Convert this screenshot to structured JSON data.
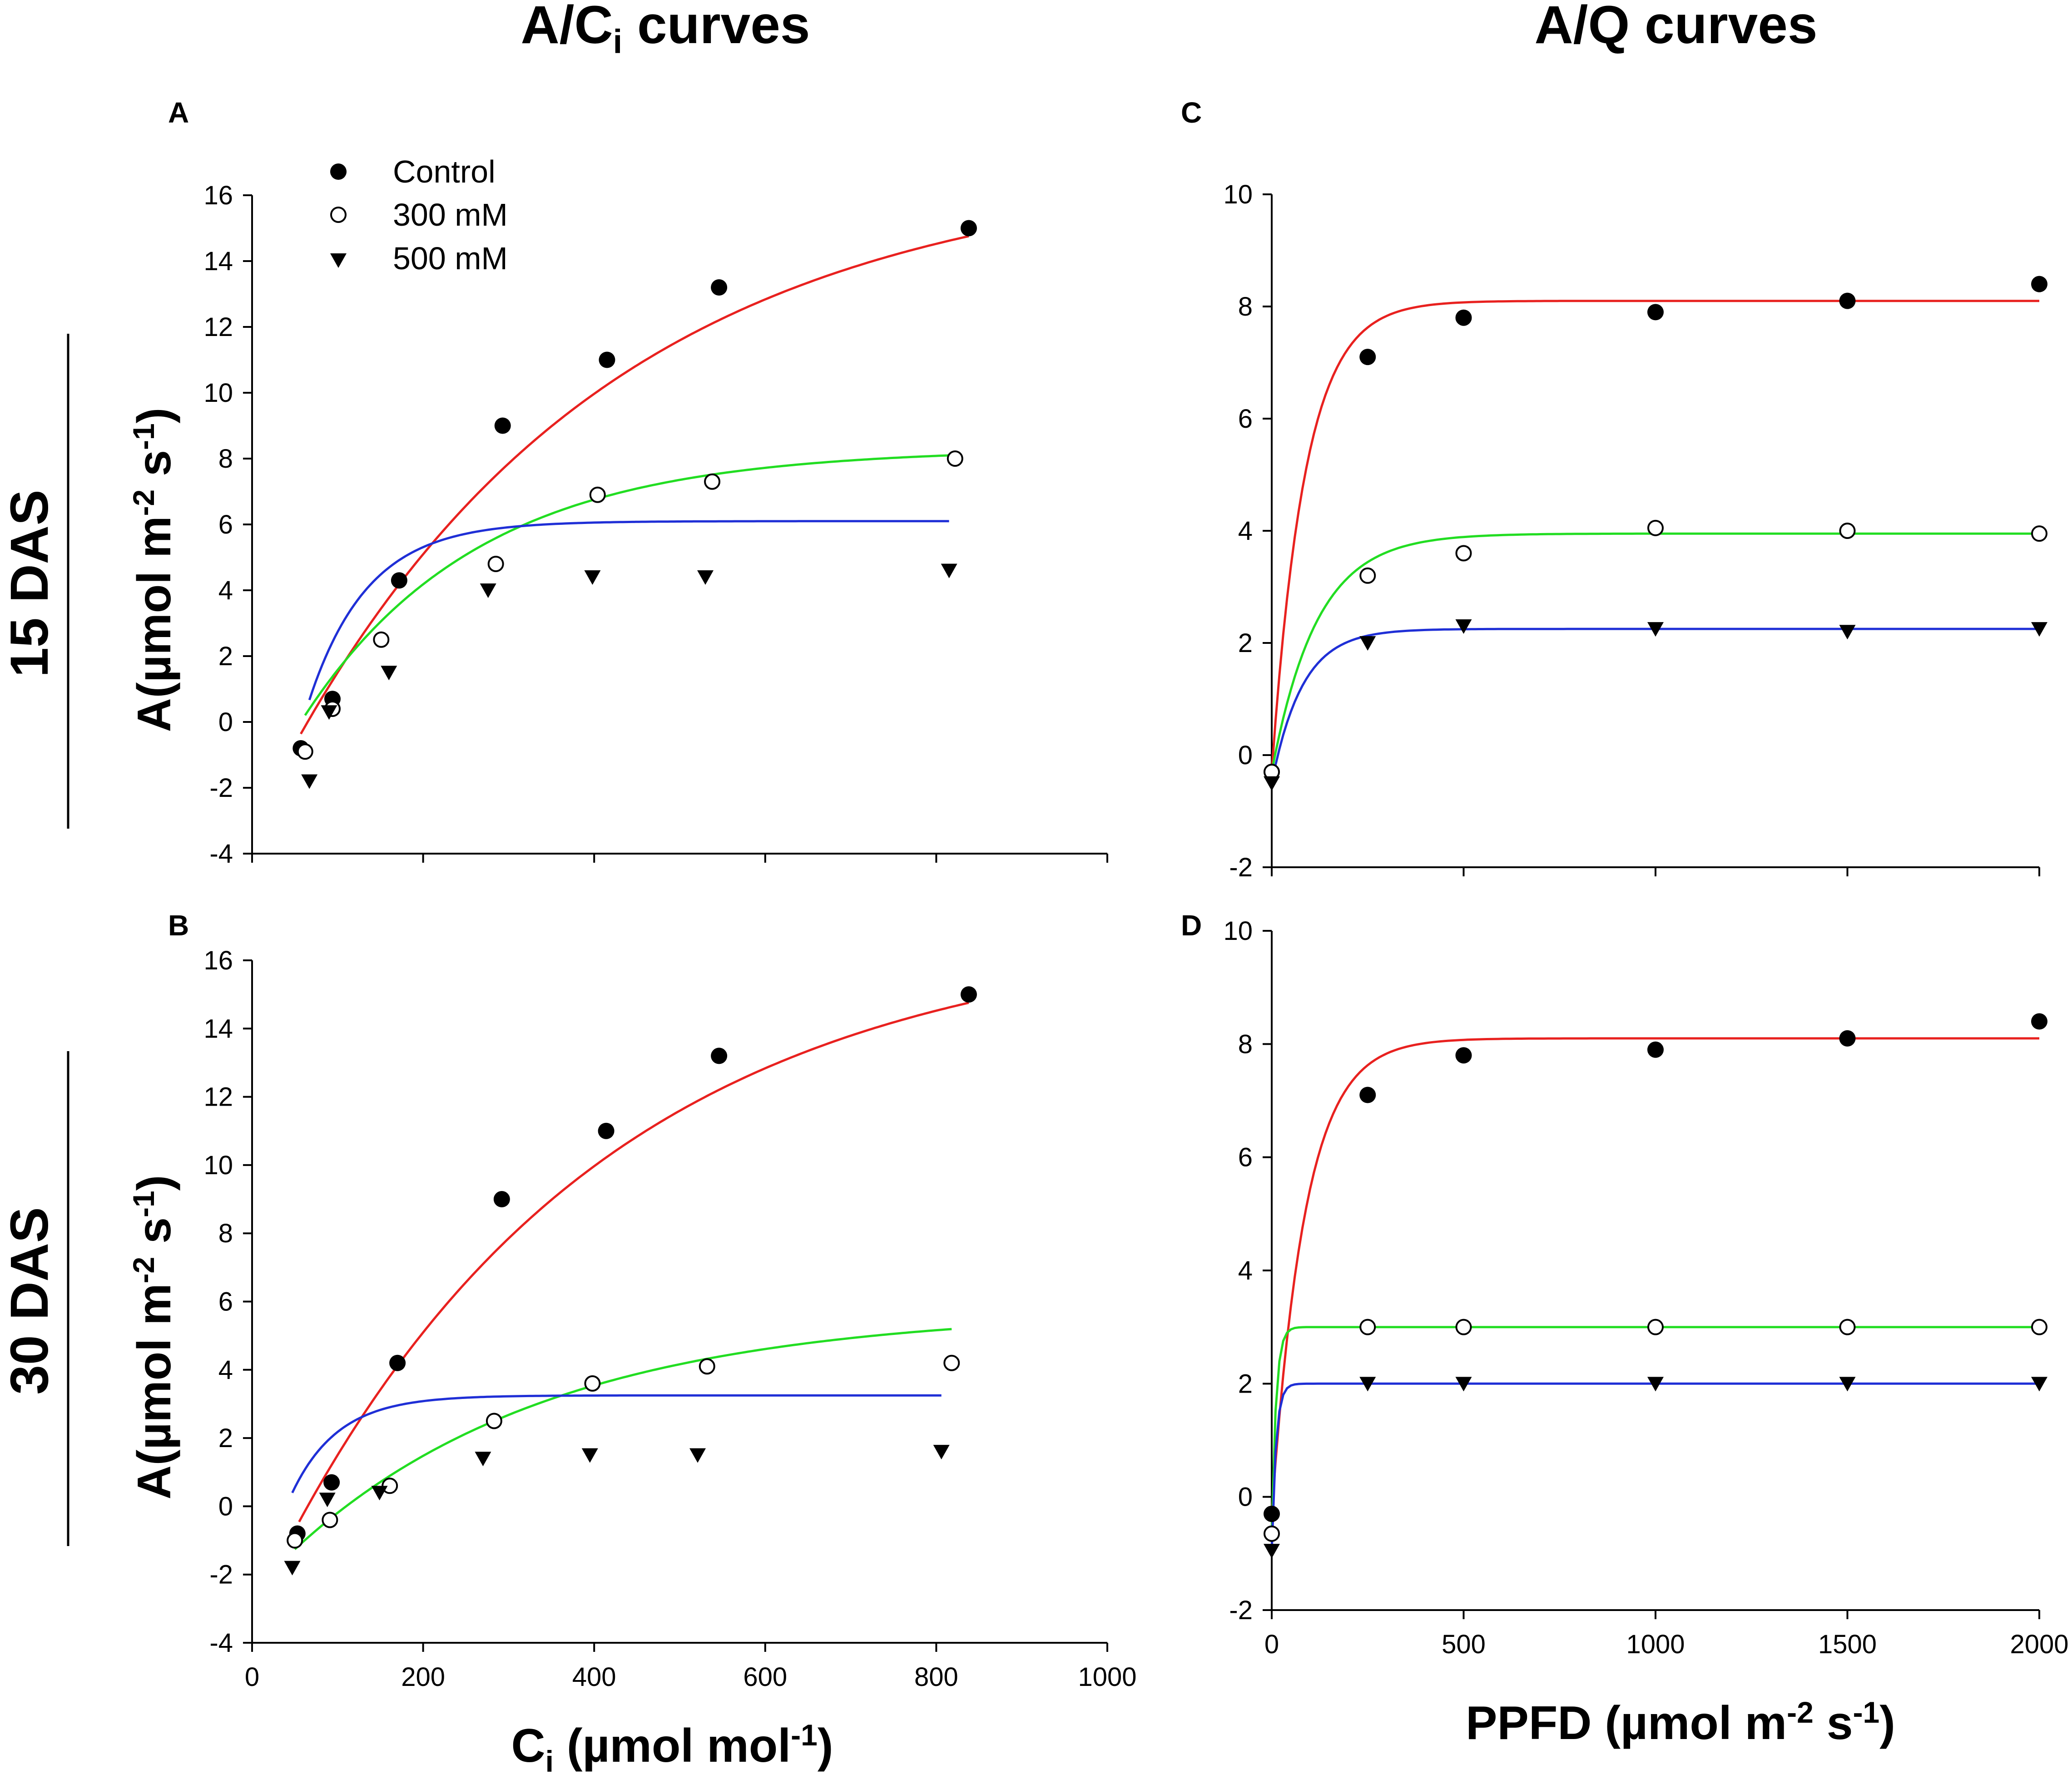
{
  "column_titles": {
    "left": {
      "main": "A/C",
      "sub": "i",
      "rest": " curves"
    },
    "right": "A/Q curves"
  },
  "row_labels": [
    "15 DAS",
    "30 DAS"
  ],
  "legend": [
    "Control",
    "300 mM",
    "500 mM"
  ],
  "colors": {
    "control": "#e8211f",
    "mM300": "#22dd22",
    "mM500": "#1f2fd6"
  },
  "axis_titles": {
    "y": {
      "a": "A(µmol m",
      "sup1": "-2",
      "b": " s",
      "sup2": "-1",
      "c": ")"
    },
    "x_left": {
      "a": "C",
      "sub": "i",
      "b": "  (µmol mol",
      "sup": "-1",
      "c": ")"
    },
    "x_right": {
      "a": "PPFD (µmol m",
      "sup1": "-2",
      "b": " s",
      "sup2": "-1",
      "c": ")"
    }
  },
  "chart_data": [
    {
      "panel": "A",
      "type": "scatter",
      "xlim": [
        0,
        1000
      ],
      "ylim": [
        -4,
        16
      ],
      "xticks": [
        0,
        200,
        400,
        600,
        800,
        1000
      ],
      "yticks": [
        -4,
        -2,
        0,
        2,
        4,
        6,
        8,
        10,
        12,
        14,
        16
      ],
      "show_xtick_labels": false,
      "series": [
        {
          "name": "Control",
          "marker": "filled-circle",
          "color_key": "control",
          "x": [
            57,
            94,
            172,
            293,
            415,
            546,
            838
          ],
          "y": [
            -0.8,
            0.7,
            4.3,
            9.0,
            11.0,
            13.2,
            15.0
          ],
          "fit": {
            "x0": 57,
            "x1": 838,
            "amax": 16.94,
            "k": 0.00265,
            "c0": 65
          }
        },
        {
          "name": "300 mM",
          "marker": "open-circle",
          "color_key": "mM300",
          "x": [
            62,
            94,
            151,
            285,
            404,
            538,
            822
          ],
          "y": [
            -0.9,
            0.4,
            2.5,
            4.8,
            6.9,
            7.3,
            8.0
          ],
          "fit": {
            "x0": 62,
            "x1": 822,
            "amax": 8.3,
            "k": 0.0049,
            "c0": 57
          }
        },
        {
          "name": "500 mM",
          "marker": "triangle-down",
          "color_key": "mM500",
          "x": [
            67,
            90,
            160,
            276,
            398,
            530,
            815
          ],
          "y": [
            -1.8,
            0.3,
            1.5,
            4.0,
            4.4,
            4.4,
            4.6
          ],
          "fit": {
            "x0": 67,
            "x1": 815,
            "amax": 6.1,
            "k": 0.0145,
            "c0": 59
          }
        }
      ]
    },
    {
      "panel": "B",
      "type": "scatter",
      "xlim": [
        0,
        1000
      ],
      "ylim": [
        -4,
        16
      ],
      "xticks": [
        0,
        200,
        400,
        600,
        800,
        1000
      ],
      "yticks": [
        -4,
        -2,
        0,
        2,
        4,
        6,
        8,
        10,
        12,
        14,
        16
      ],
      "show_xtick_labels": true,
      "series": [
        {
          "name": "Control",
          "marker": "filled-circle",
          "color_key": "control",
          "x": [
            53,
            93,
            170,
            292,
            414,
            546,
            838
          ],
          "y": [
            -0.8,
            0.7,
            4.2,
            9.0,
            11.0,
            13.2,
            15.0
          ],
          "fit": {
            "x0": 55,
            "x1": 838,
            "amax": 16.94,
            "k": 0.00265,
            "c0": 65
          }
        },
        {
          "name": "300 mM",
          "marker": "open-circle",
          "color_key": "mM300",
          "x": [
            50,
            91,
            161,
            283,
            398,
            532,
            818
          ],
          "y": [
            -1.0,
            -0.4,
            0.6,
            2.5,
            3.6,
            4.1,
            4.2
          ],
          "fit": {
            "x0": 50,
            "x1": 818,
            "amax": 5.75,
            "k": 0.0033,
            "c0": 110
          }
        },
        {
          "name": "500 mM",
          "marker": "triangle-down",
          "color_key": "mM500",
          "x": [
            47,
            88,
            149,
            270,
            395,
            521,
            806
          ],
          "y": [
            -1.8,
            0.2,
            0.4,
            1.4,
            1.5,
            1.5,
            1.6
          ],
          "fit": {
            "x0": 47,
            "x1": 806,
            "amax": 3.25,
            "k": 0.0185,
            "c0": 40
          }
        }
      ]
    },
    {
      "panel": "C",
      "type": "scatter",
      "xlim": [
        0,
        2000
      ],
      "ylim": [
        -2,
        10
      ],
      "xticks": [
        0,
        500,
        1000,
        1500,
        2000
      ],
      "yticks": [
        -2,
        0,
        2,
        4,
        6,
        8,
        10
      ],
      "show_xtick_labels": false,
      "series": [
        {
          "name": "Control",
          "marker": "filled-circle",
          "color_key": "control",
          "x": [
            0,
            250,
            500,
            1000,
            1500,
            2000
          ],
          "y": [
            -0.3,
            7.1,
            7.8,
            7.9,
            8.1,
            8.4
          ],
          "fit": {
            "x0": 0,
            "x1": 2000,
            "amax": 8.4,
            "k": 0.0115,
            "c0": 0,
            "offset": -0.3
          }
        },
        {
          "name": "300 mM",
          "marker": "open-circle",
          "color_key": "mM300",
          "x": [
            0,
            250,
            500,
            1000,
            1500,
            2000
          ],
          "y": [
            -0.3,
            3.2,
            3.6,
            4.05,
            4.0,
            3.95
          ],
          "fit": {
            "x0": 0,
            "x1": 2000,
            "amax": 4.25,
            "k": 0.0085,
            "c0": 0,
            "offset": -0.3
          }
        },
        {
          "name": "500 mM",
          "marker": "triangle-down",
          "color_key": "mM500",
          "x": [
            0,
            250,
            500,
            1000,
            1500,
            2000
          ],
          "y": [
            -0.5,
            2.0,
            2.3,
            2.25,
            2.2,
            2.25
          ],
          "fit": {
            "x0": 0,
            "x1": 2000,
            "amax": 2.75,
            "k": 0.0125,
            "c0": 0,
            "offset": -0.5
          }
        }
      ]
    },
    {
      "panel": "D",
      "type": "scatter",
      "xlim": [
        0,
        2000
      ],
      "ylim": [
        -2,
        10
      ],
      "xticks": [
        0,
        500,
        1000,
        1500,
        2000
      ],
      "yticks": [
        -2,
        0,
        2,
        4,
        6,
        8,
        10
      ],
      "show_xtick_labels": true,
      "series": [
        {
          "name": "Control",
          "marker": "filled-circle",
          "color_key": "control",
          "x": [
            0,
            250,
            500,
            1000,
            1500,
            2000
          ],
          "y": [
            -0.3,
            7.1,
            7.8,
            7.9,
            8.1,
            8.4
          ],
          "fit": {
            "x0": 0,
            "x1": 2000,
            "amax": 8.4,
            "k": 0.0115,
            "c0": 0,
            "offset": -0.3
          }
        },
        {
          "name": "300 mM",
          "marker": "open-circle",
          "color_key": "mM300",
          "x": [
            0,
            250,
            500,
            1000,
            1500,
            2000
          ],
          "y": [
            -0.65,
            3.0,
            3.0,
            3.0,
            3.0,
            3.0
          ],
          "fit": {
            "x0": 0,
            "x1": 2000,
            "amax": 3.65,
            "k": 0.09,
            "c0": 0,
            "offset": -0.65
          }
        },
        {
          "name": "500 mM",
          "marker": "triangle-down",
          "color_key": "mM500",
          "x": [
            0,
            250,
            500,
            1000,
            1500,
            2000
          ],
          "y": [
            -0.95,
            2.0,
            2.0,
            2.0,
            2.0,
            2.0
          ],
          "fit": {
            "x0": 0,
            "x1": 2000,
            "amax": 2.95,
            "k": 0.09,
            "c0": 0,
            "offset": -0.95
          }
        }
      ]
    }
  ]
}
